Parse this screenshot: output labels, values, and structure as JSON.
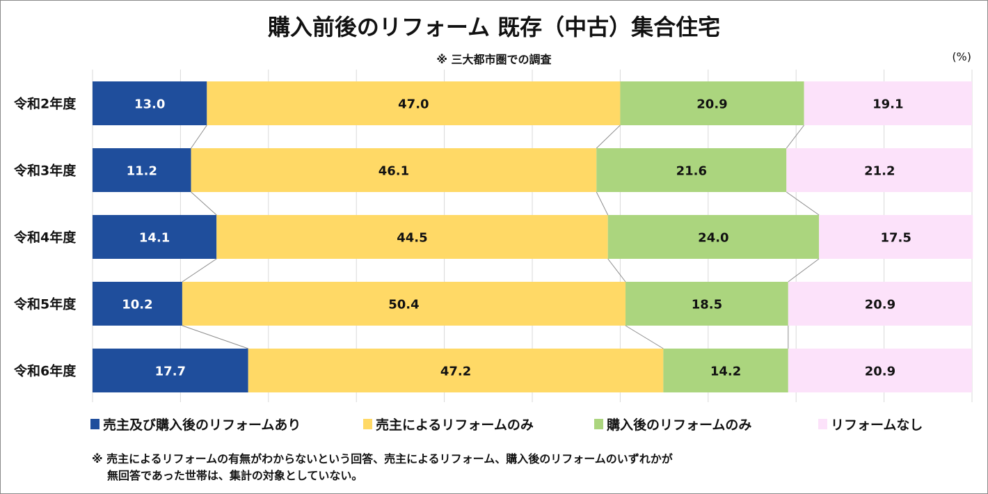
{
  "chart_data": {
    "type": "bar",
    "orientation": "horizontal",
    "stacked": "percent",
    "title": "購入前後のリフォーム 既存（中古）集合住宅",
    "subtitle": "※ 三大都市圏での調査",
    "unit": "(%)",
    "categories": [
      "令和2年度",
      "令和3年度",
      "令和4年度",
      "令和5年度",
      "令和6年度"
    ],
    "series": [
      {
        "name": "売主及び購入後のリフォームあり",
        "color": "#1F4E9C",
        "label_color": "#FFFFFF",
        "values": [
          13.0,
          11.2,
          14.1,
          10.2,
          17.7
        ]
      },
      {
        "name": "売主によるリフォームのみ",
        "color": "#FFD966",
        "label_color": "#111111",
        "values": [
          47.0,
          46.1,
          44.5,
          50.4,
          47.2
        ]
      },
      {
        "name": "購入後のリフォームのみ",
        "color": "#ABD57E",
        "label_color": "#111111",
        "values": [
          20.9,
          21.6,
          24.0,
          18.5,
          14.2
        ]
      },
      {
        "name": "リフォームなし",
        "color": "#FCE2FA",
        "label_color": "#111111",
        "values": [
          19.1,
          21.2,
          17.5,
          20.9,
          20.9
        ]
      }
    ],
    "xlim": [
      0,
      100
    ],
    "grid": true,
    "series_lines": true,
    "legend_position": "bottom",
    "notes": [
      "※ 売主によるリフォームの有無がわからないという回答、売主によるリフォーム、購入後のリフォームのいずれかが",
      "無回答であった世帯は、集計の対象としていない。"
    ]
  }
}
